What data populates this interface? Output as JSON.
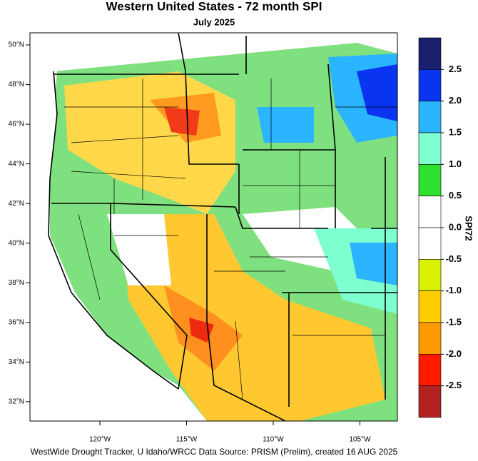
{
  "title": "Western United States - 72 month SPI",
  "subtitle": "July 2025",
  "footer": "WestWide Drought Tracker, U Idaho/WRCC Data Source: PRISM (Prelim), created 16 AUG 2025",
  "map": {
    "lat_ticks": [
      {
        "value": 50,
        "label": "50°N"
      },
      {
        "value": 48,
        "label": "48°N"
      },
      {
        "value": 46,
        "label": "46°N"
      },
      {
        "value": 44,
        "label": "44°N"
      },
      {
        "value": 42,
        "label": "42°N"
      },
      {
        "value": 40,
        "label": "40°N"
      },
      {
        "value": 38,
        "label": "38°N"
      },
      {
        "value": 36,
        "label": "36°N"
      },
      {
        "value": 34,
        "label": "34°N"
      },
      {
        "value": 32,
        "label": "32°N"
      }
    ],
    "lon_ticks": [
      {
        "value": -120,
        "label": "120°W"
      },
      {
        "value": -115,
        "label": "115°W"
      },
      {
        "value": -110,
        "label": "110°W"
      },
      {
        "value": -105,
        "label": "105°W"
      }
    ]
  },
  "colorbar": {
    "title": "SPI72",
    "ticks": [
      {
        "value": 2.5,
        "label": "2.5"
      },
      {
        "value": 2,
        "label": "2.0"
      },
      {
        "value": 1.5,
        "label": "1.5"
      },
      {
        "value": 1,
        "label": "1.0"
      },
      {
        "value": 0.5,
        "label": "0.5"
      },
      {
        "value": 0,
        "label": "0.0"
      },
      {
        "value": -0.5,
        "label": "-0.5"
      },
      {
        "value": -1,
        "label": "-1.0"
      },
      {
        "value": -1.5,
        "label": "-1.5"
      },
      {
        "value": -2,
        "label": "-2.0"
      },
      {
        "value": -2.5,
        "label": "-2.5"
      }
    ],
    "colors": [
      "#1a1f6e",
      "#0a35f0",
      "#2bb4ff",
      "#7dffd0",
      "#2fe02f",
      "#ffffff",
      "#ffffff",
      "#d9f000",
      "#ffcc00",
      "#ff9900",
      "#ff1a00",
      "#b22222"
    ]
  }
}
